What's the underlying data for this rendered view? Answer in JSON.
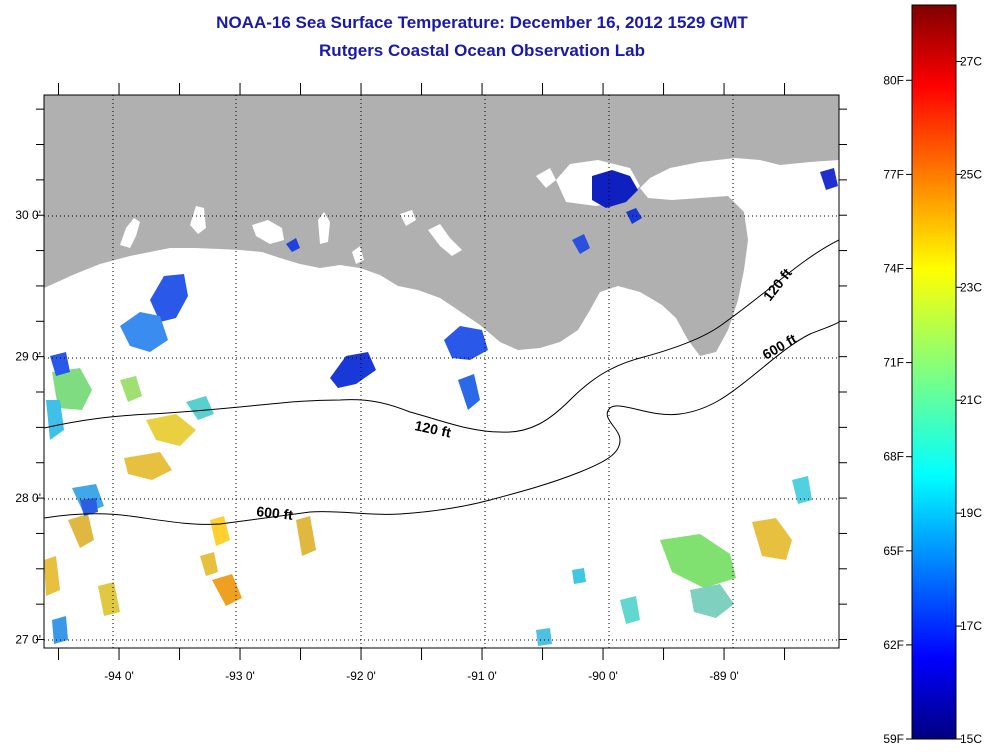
{
  "title": {
    "line1": "NOAA-16 Sea Surface Temperature:  December 16, 2012 1529 GMT",
    "line2": "Rutgers Coastal Ocean Observation Lab"
  },
  "axes": {
    "lat_ticks": [
      {
        "value": 30.0,
        "label": "30 0'"
      },
      {
        "value": 29.0,
        "label": "29 0'"
      },
      {
        "value": 28.0,
        "label": "28 0'"
      },
      {
        "value": 27.0,
        "label": "27 0'"
      }
    ],
    "lon_ticks": [
      {
        "value": -94.0,
        "label": "-94 0'"
      },
      {
        "value": -93.0,
        "label": "-93 0'"
      },
      {
        "value": -92.0,
        "label": "-92 0'"
      },
      {
        "value": -91.0,
        "label": "-91 0'"
      },
      {
        "value": -90.0,
        "label": "-90 0'"
      },
      {
        "value": -89.0,
        "label": "-89 0'"
      }
    ],
    "lat_range": [
      26.94,
      30.85
    ],
    "lon_range": [
      -94.62,
      -88.05
    ]
  },
  "contours": {
    "label_120": "120 ft",
    "label_120_b": "120 ft",
    "label_600": "600 ft",
    "label_600_b": "600 ft"
  },
  "colorbar": {
    "f_labels": [
      "80F",
      "77F",
      "74F",
      "71F",
      "68F",
      "65F",
      "62F",
      "59F"
    ],
    "c_labels": [
      "27C",
      "25C",
      "23C",
      "21C",
      "19C",
      "17C",
      "15C"
    ],
    "range_c": [
      15,
      28
    ]
  },
  "colors": {
    "land": "#b0b0b0",
    "title": "#1a1aa8"
  }
}
